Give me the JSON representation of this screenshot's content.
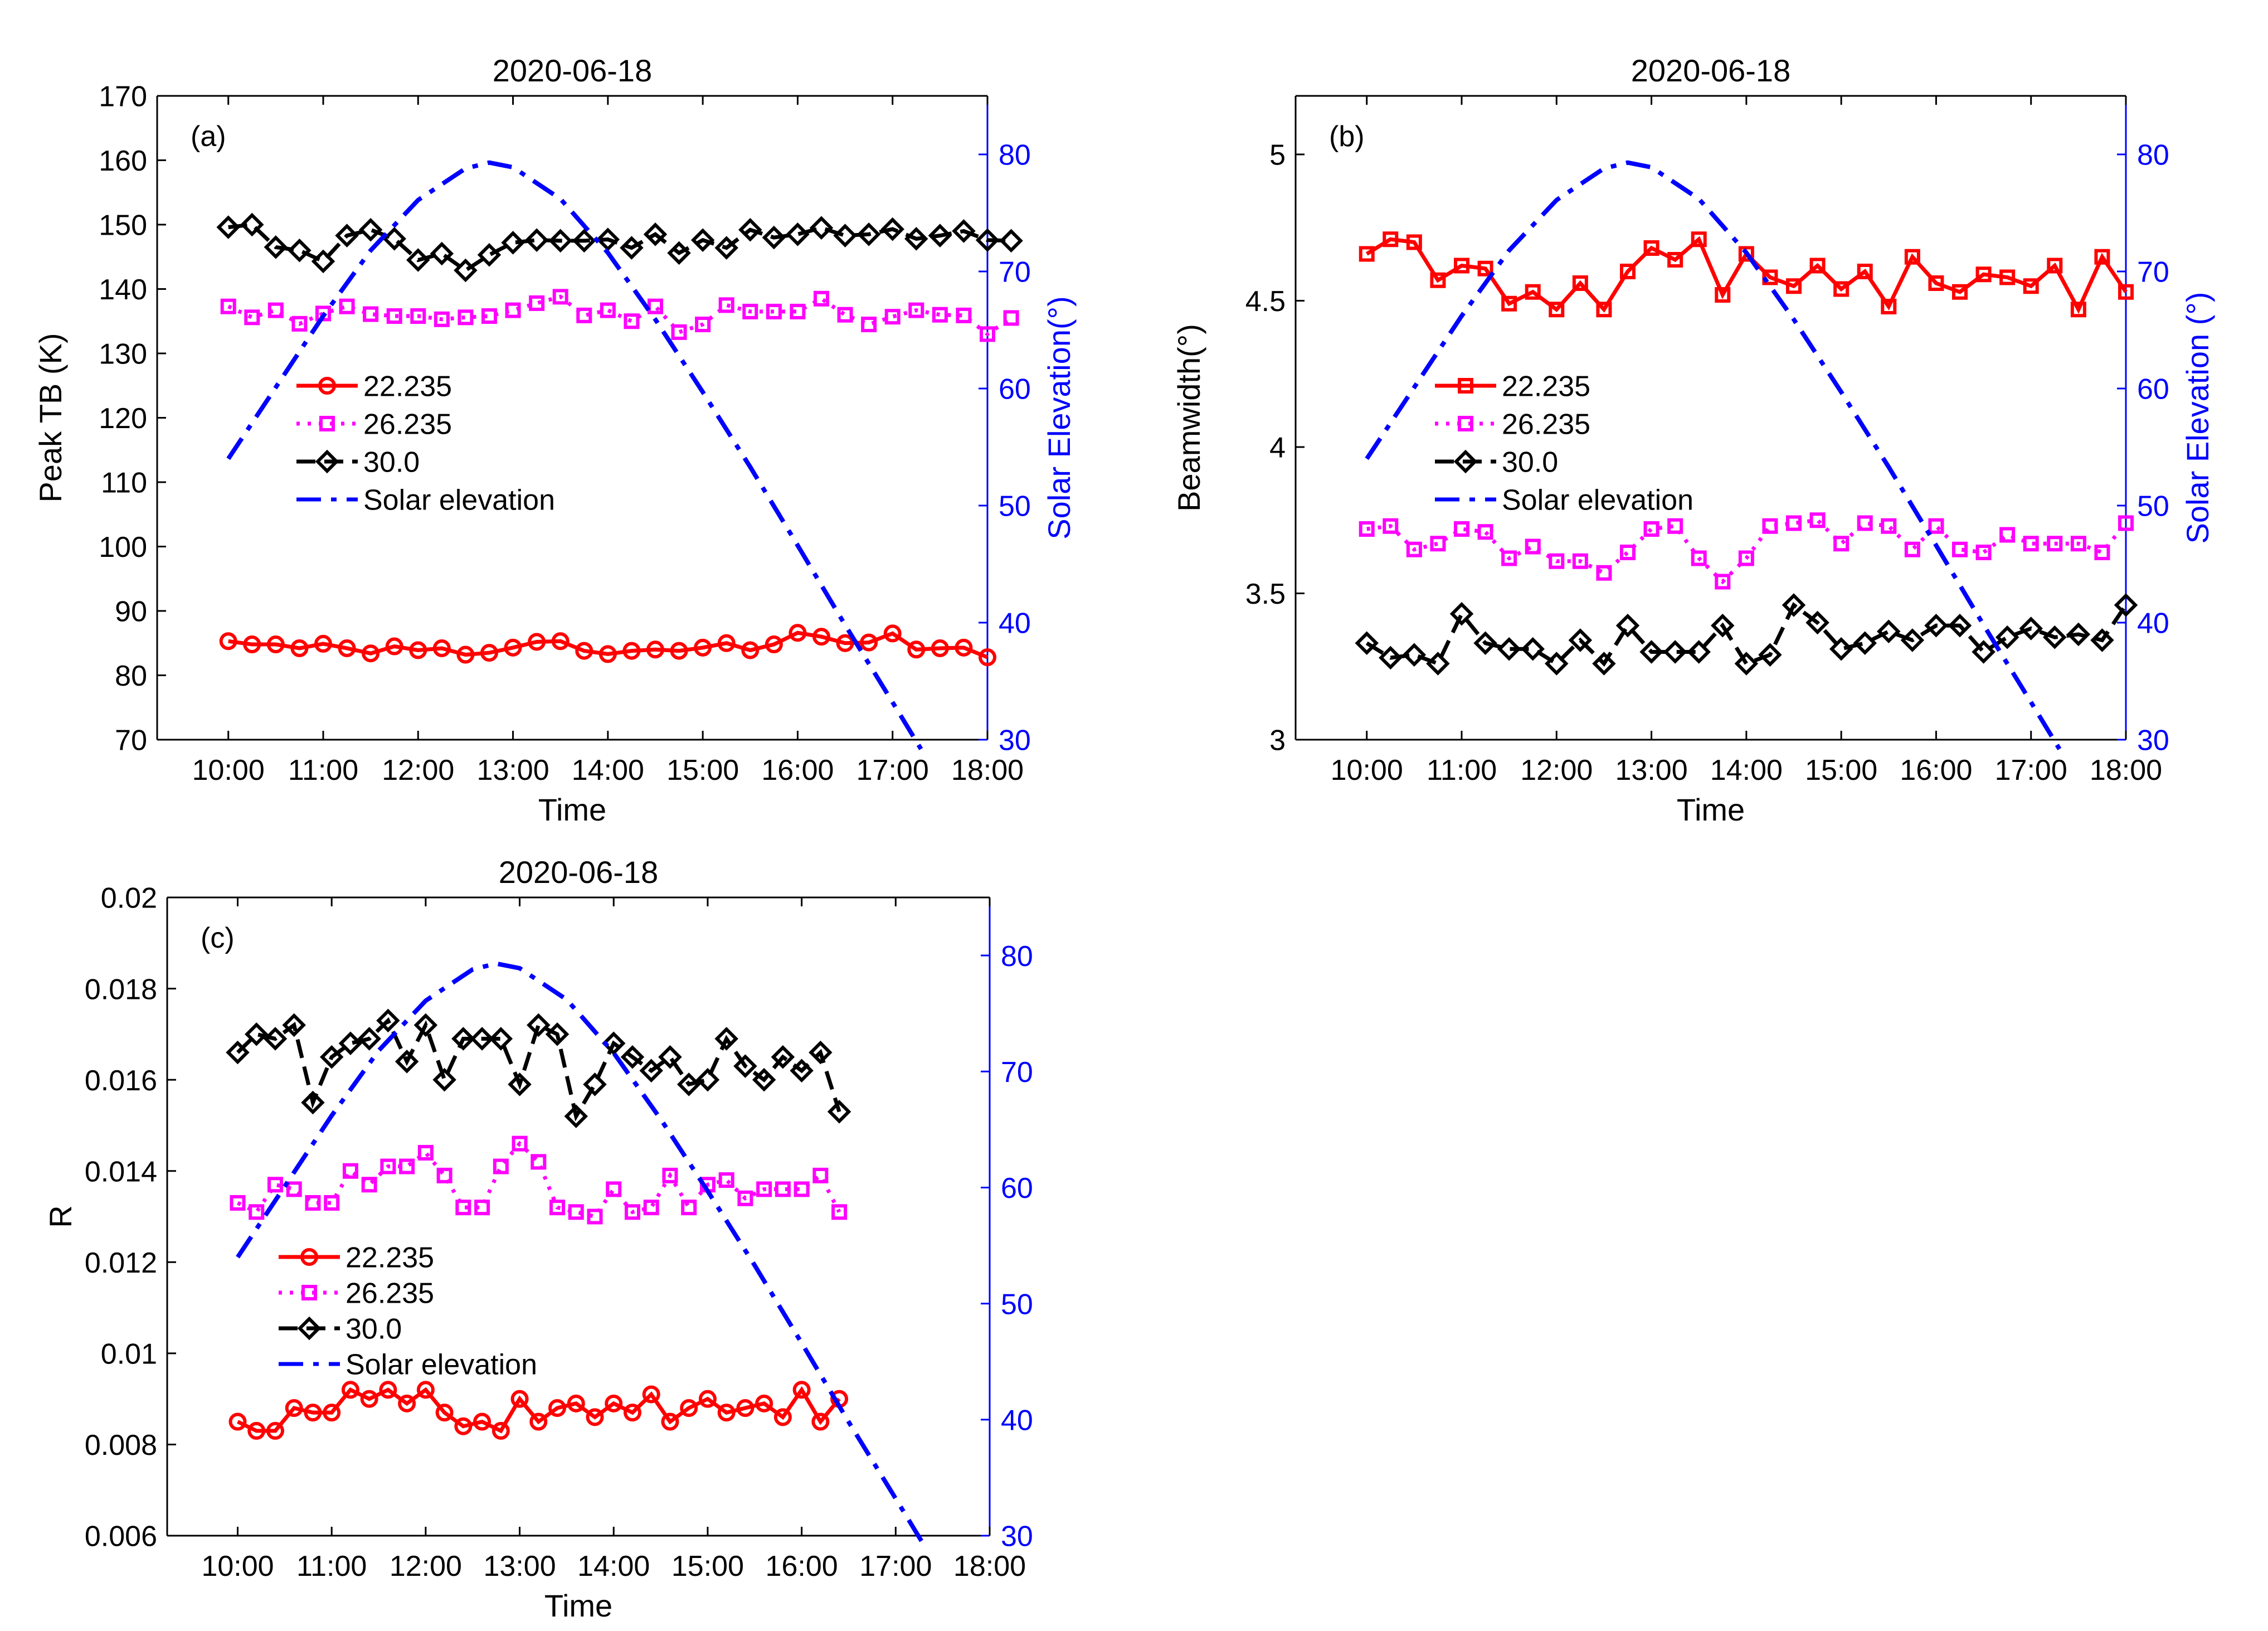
{
  "chart_data": [
    {
      "type": "line",
      "panel_label": "(a)",
      "title": "2020-06-18",
      "xlabel": "Time",
      "ylabel": "Peak TB (K)",
      "y2label": "Solar Elevation(°)",
      "ylim": [
        70,
        170
      ],
      "yticks": [
        "70",
        "80",
        "90",
        "100",
        "110",
        "120",
        "130",
        "140",
        "150",
        "160",
        "170"
      ],
      "y2lim": [
        30,
        85
      ],
      "y2ticks": [
        "30",
        "40",
        "50",
        "60",
        "70",
        "80"
      ],
      "xlim": [
        9.25,
        18
      ],
      "xticks": [
        "10:00",
        "11:00",
        "12:00",
        "13:00",
        "14:00",
        "15:00",
        "16:00",
        "17:00",
        "18:00"
      ],
      "legend_position": "middle-left",
      "series": [
        {
          "name": "22.235",
          "color": "#ff0000",
          "marker": "circle",
          "linestyle": "solid",
          "x0": 10.0,
          "dx": 0.25,
          "values": [
            85.3,
            84.8,
            84.8,
            84.2,
            84.9,
            84.2,
            83.4,
            84.5,
            83.9,
            84.2,
            83.2,
            83.5,
            84.3,
            85.2,
            85.3,
            83.8,
            83.3,
            83.8,
            84.0,
            83.8,
            84.3,
            85.0,
            83.9,
            84.8,
            86.6,
            86.0,
            85.0,
            85.1,
            86.5,
            84.0,
            84.2,
            84.3,
            82.8
          ]
        },
        {
          "name": "26.235",
          "color": "#ff00ff",
          "marker": "square",
          "linestyle": "dotted",
          "x0": 10.0,
          "dx": 0.25,
          "values": [
            137.3,
            135.6,
            136.7,
            134.6,
            136.2,
            137.3,
            136.1,
            135.8,
            135.8,
            135.3,
            135.6,
            135.8,
            136.7,
            137.8,
            138.8,
            135.9,
            136.7,
            135.0,
            137.3,
            133.3,
            134.5,
            137.5,
            136.5,
            136.5,
            136.5,
            138.5,
            136.0,
            134.5,
            135.7,
            136.7,
            136.0,
            135.9,
            133.0,
            135.5
          ]
        },
        {
          "name": "30.0",
          "color": "#000000",
          "marker": "diamond",
          "linestyle": "dashed",
          "x0": 10.0,
          "dx": 0.25,
          "values": [
            149.6,
            150.0,
            146.5,
            146.0,
            144.3,
            148.3,
            149.2,
            147.8,
            144.5,
            145.5,
            142.9,
            145.3,
            147.2,
            147.6,
            147.5,
            147.5,
            147.7,
            146.4,
            148.5,
            145.6,
            147.6,
            146.4,
            149.2,
            148.0,
            148.5,
            149.5,
            148.3,
            148.5,
            149.3,
            147.8,
            148.3,
            149.0,
            147.6,
            147.5
          ]
        },
        {
          "name": "Solar elevation",
          "color": "#0000ff",
          "linestyle": "dashdot",
          "axis": "right",
          "x": [
            10.0,
            10.5,
            11.0,
            11.5,
            12.0,
            12.5,
            12.75,
            13.0,
            13.5,
            14.0,
            14.5,
            15.0,
            15.5,
            16.0,
            16.5,
            17.0,
            17.3
          ],
          "values": [
            54,
            60.1,
            66.2,
            71.8,
            76.1,
            78.8,
            79.3,
            78.9,
            76.2,
            71.6,
            65.9,
            59.7,
            53.3,
            46.6,
            39.8,
            33.2,
            29.2
          ]
        }
      ]
    },
    {
      "type": "line",
      "panel_label": "(b)",
      "title": "2020-06-18",
      "xlabel": "Time",
      "ylabel": "Beamwidth(°)",
      "y2label": "Solar Elevation (°)",
      "ylim": [
        3,
        5.2
      ],
      "yticks": [
        "3",
        "3.5",
        "4",
        "4.5",
        "5"
      ],
      "y2lim": [
        30,
        85
      ],
      "y2ticks": [
        "30",
        "40",
        "50",
        "60",
        "70",
        "80"
      ],
      "xlim": [
        9.25,
        18
      ],
      "xticks": [
        "10:00",
        "11:00",
        "12:00",
        "13:00",
        "14:00",
        "15:00",
        "16:00",
        "17:00",
        "18:00"
      ],
      "legend_position": "middle-left",
      "series": [
        {
          "name": "22.235",
          "color": "#ff0000",
          "marker": "square",
          "linestyle": "solid",
          "x0": 10.0,
          "dx": 0.25,
          "values": [
            4.66,
            4.71,
            4.7,
            4.57,
            4.62,
            4.61,
            4.49,
            4.53,
            4.47,
            4.56,
            4.47,
            4.6,
            4.68,
            4.64,
            4.71,
            4.52,
            4.66,
            4.58,
            4.55,
            4.62,
            4.54,
            4.6,
            4.48,
            4.65,
            4.56,
            4.53,
            4.59,
            4.58,
            4.55,
            4.62,
            4.47,
            4.65,
            4.53
          ]
        },
        {
          "name": "26.235",
          "color": "#ff00ff",
          "marker": "square",
          "linestyle": "dotted",
          "x0": 10.0,
          "dx": 0.25,
          "values": [
            3.72,
            3.73,
            3.65,
            3.67,
            3.72,
            3.71,
            3.62,
            3.66,
            3.61,
            3.61,
            3.57,
            3.64,
            3.72,
            3.73,
            3.62,
            3.54,
            3.62,
            3.73,
            3.74,
            3.75,
            3.67,
            3.74,
            3.73,
            3.65,
            3.73,
            3.65,
            3.64,
            3.7,
            3.67,
            3.67,
            3.67,
            3.64,
            3.74
          ]
        },
        {
          "name": "30.0",
          "color": "#000000",
          "marker": "diamond",
          "linestyle": "dashed",
          "x0": 10.0,
          "dx": 0.25,
          "values": [
            3.33,
            3.28,
            3.29,
            3.26,
            3.43,
            3.33,
            3.31,
            3.31,
            3.26,
            3.34,
            3.26,
            3.39,
            3.3,
            3.3,
            3.3,
            3.39,
            3.26,
            3.29,
            3.46,
            3.4,
            3.31,
            3.33,
            3.37,
            3.34,
            3.39,
            3.39,
            3.3,
            3.35,
            3.38,
            3.35,
            3.36,
            3.34,
            3.46
          ]
        },
        {
          "name": "Solar elevation",
          "color": "#0000ff",
          "linestyle": "dashdot",
          "axis": "right",
          "x": [
            10.0,
            10.5,
            11.0,
            11.5,
            12.0,
            12.5,
            12.75,
            13.0,
            13.5,
            14.0,
            14.5,
            15.0,
            15.5,
            16.0,
            16.5,
            17.0,
            17.3
          ],
          "values": [
            54,
            60.1,
            66.2,
            71.8,
            76.1,
            78.8,
            79.3,
            78.9,
            76.2,
            71.6,
            65.9,
            59.7,
            53.3,
            46.6,
            39.8,
            33.2,
            29.2
          ]
        }
      ]
    },
    {
      "type": "line",
      "panel_label": "(c)",
      "title": "2020-06-18",
      "xlabel": "Time",
      "ylabel": "R",
      "y2label": "",
      "ylim": [
        0.006,
        0.02
      ],
      "yticks": [
        "0.006",
        "0.008",
        "0.01",
        "0.012",
        "0.014",
        "0.016",
        "0.018",
        "0.02"
      ],
      "y2lim": [
        30,
        85
      ],
      "y2ticks": [
        "30",
        "40",
        "50",
        "60",
        "70",
        "80"
      ],
      "xlim": [
        9.25,
        18
      ],
      "xticks": [
        "10:00",
        "11:00",
        "12:00",
        "13:00",
        "14:00",
        "15:00",
        "16:00",
        "17:00",
        "18:00"
      ],
      "legend_position": "middle-left",
      "series": [
        {
          "name": "22.235",
          "color": "#ff0000",
          "marker": "circle",
          "linestyle": "solid",
          "x0": 10.0,
          "dx": 0.2,
          "values": [
            0.0085,
            0.0083,
            0.0083,
            0.0088,
            0.0087,
            0.0087,
            0.0092,
            0.009,
            0.0092,
            0.0089,
            0.0092,
            0.0087,
            0.0084,
            0.0085,
            0.0083,
            0.009,
            0.0085,
            0.0088,
            0.0089,
            0.0086,
            0.0089,
            0.0087,
            0.0091,
            0.0085,
            0.0088,
            0.009,
            0.0087,
            0.0088,
            0.0089,
            0.0086,
            0.0092,
            0.0085,
            0.009
          ]
        },
        {
          "name": "26.235",
          "color": "#ff00ff",
          "marker": "square",
          "linestyle": "dotted",
          "x0": 10.0,
          "dx": 0.2,
          "values": [
            0.0133,
            0.0131,
            0.0137,
            0.0136,
            0.0133,
            0.0133,
            0.014,
            0.0137,
            0.0141,
            0.0141,
            0.0144,
            0.0139,
            0.0132,
            0.0132,
            0.0141,
            0.0146,
            0.0142,
            0.0132,
            0.0131,
            0.013,
            0.0136,
            0.0131,
            0.0132,
            0.0139,
            0.0132,
            0.0137,
            0.0138,
            0.0134,
            0.0136,
            0.0136,
            0.0136,
            0.0139,
            0.0131
          ]
        },
        {
          "name": "30.0",
          "color": "#000000",
          "marker": "diamond",
          "linestyle": "dashed",
          "x0": 10.0,
          "dx": 0.2,
          "values": [
            0.0166,
            0.017,
            0.0169,
            0.0172,
            0.0155,
            0.0165,
            0.0168,
            0.0169,
            0.0173,
            0.0164,
            0.0172,
            0.016,
            0.0169,
            0.0169,
            0.0169,
            0.0159,
            0.0172,
            0.017,
            0.0152,
            0.0159,
            0.0168,
            0.0165,
            0.0162,
            0.0165,
            0.0159,
            0.016,
            0.0169,
            0.0163,
            0.016,
            0.0165,
            0.0162,
            0.0166,
            0.0153
          ]
        },
        {
          "name": "Solar elevation",
          "color": "#0000ff",
          "linestyle": "dashdot",
          "axis": "right",
          "x": [
            10.0,
            10.5,
            11.0,
            11.5,
            12.0,
            12.5,
            12.75,
            13.0,
            13.5,
            14.0,
            14.5,
            15.0,
            15.5,
            16.0,
            16.5,
            17.0,
            17.3
          ],
          "values": [
            54,
            60.1,
            66.2,
            71.8,
            76.1,
            78.8,
            79.3,
            78.9,
            76.2,
            71.6,
            65.9,
            59.7,
            53.3,
            46.6,
            39.8,
            33.2,
            29.2
          ]
        }
      ]
    }
  ]
}
